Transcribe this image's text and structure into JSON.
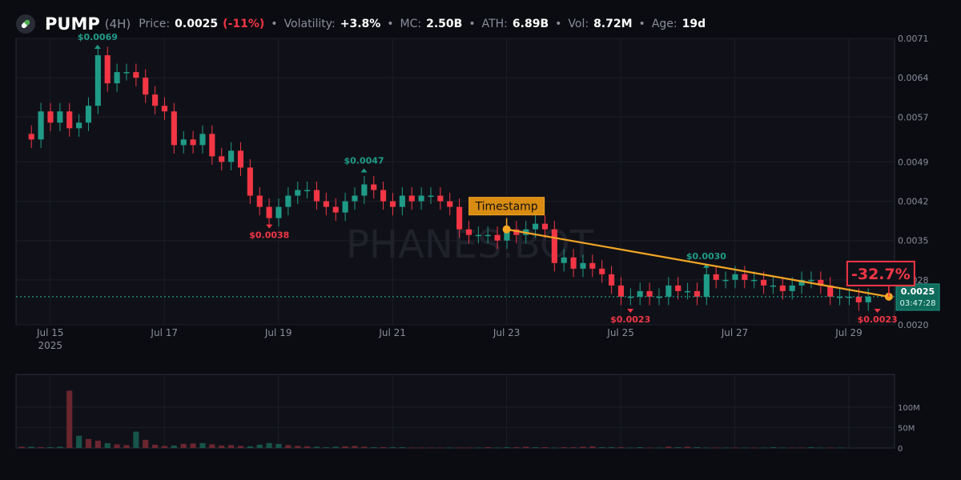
{
  "header": {
    "symbol": "PUMP",
    "timeframe": "(4H)",
    "price_label": "Price:",
    "price": "0.0025",
    "price_change": "(-11%)",
    "volatility_label": "Volatility:",
    "volatility": "+3.8%",
    "mc_label": "MC:",
    "mc": "2.50B",
    "ath_label": "ATH:",
    "ath": "6.89B",
    "vol_label": "Vol:",
    "vol": "8.72M",
    "age_label": "Age:",
    "age": "19d",
    "separator": "•",
    "icon": "pill-icon"
  },
  "colors": {
    "up": "#1f9b87",
    "down": "#f23645",
    "trend": "#f5a623",
    "background": "#0b0c12",
    "panel": "#101118",
    "grid": "#1c1e27"
  },
  "watermark": "PHANES.BOT",
  "chart_data": [
    {
      "type": "candlestick",
      "ylim": [
        0.002,
        0.0071
      ],
      "y_ticks": [
        "0.0071",
        "0.0064",
        "0.0057",
        "0.0049",
        "0.0042",
        "0.0035",
        "0.0028",
        "0.0020"
      ],
      "x_ticks": [
        {
          "label": "Jul 15",
          "day": 15
        },
        {
          "label": "Jul 17",
          "day": 17
        },
        {
          "label": "Jul 19",
          "day": 19
        },
        {
          "label": "Jul 21",
          "day": 21
        },
        {
          "label": "Jul 23",
          "day": 23
        },
        {
          "label": "Jul 25",
          "day": 25
        },
        {
          "label": "Jul 27",
          "day": 27
        },
        {
          "label": "Jul 29",
          "day": 29
        }
      ],
      "x_range_days": [
        14.4,
        29.8
      ],
      "year_label": "2025",
      "grid": true,
      "candles_start_day": 14.67,
      "candle_interval_days": 0.1667,
      "closes": [
        0.0053,
        0.0058,
        0.0056,
        0.0058,
        0.0055,
        0.0056,
        0.0059,
        0.0068,
        0.0063,
        0.0065,
        0.0065,
        0.0064,
        0.0061,
        0.0059,
        0.0058,
        0.0052,
        0.0053,
        0.0052,
        0.0054,
        0.005,
        0.0049,
        0.0051,
        0.0048,
        0.0043,
        0.0041,
        0.0039,
        0.0041,
        0.0043,
        0.0044,
        0.0044,
        0.0042,
        0.0041,
        0.004,
        0.0042,
        0.0043,
        0.0045,
        0.0044,
        0.0042,
        0.0041,
        0.0043,
        0.0042,
        0.0043,
        0.0043,
        0.0042,
        0.0041,
        0.0037,
        0.0036,
        0.0036,
        0.0036,
        0.0035,
        0.0037,
        0.0036,
        0.0037,
        0.0038,
        0.0037,
        0.0031,
        0.0032,
        0.003,
        0.0031,
        0.003,
        0.0029,
        0.0027,
        0.0025,
        0.0025,
        0.0026,
        0.0025,
        0.0025,
        0.0027,
        0.0026,
        0.0026,
        0.0025,
        0.0029,
        0.0028,
        0.0028,
        0.0029,
        0.0028,
        0.0028,
        0.0027,
        0.0027,
        0.0026,
        0.0027,
        0.0028,
        0.0028,
        0.0027,
        0.0025,
        0.0025,
        0.0025,
        0.0024,
        0.0025
      ],
      "price_line": {
        "value": 0.0025,
        "label": "0.0025",
        "countdown": "03:47:28"
      },
      "annotations": [
        {
          "text": "$0.0069",
          "day": 15.83,
          "value": 0.0069,
          "kind": "high"
        },
        {
          "text": "$0.0038",
          "day": 18.84,
          "value": 0.0038,
          "kind": "low"
        },
        {
          "text": "$0.0047",
          "day": 20.5,
          "value": 0.0047,
          "kind": "high"
        },
        {
          "text": "$0.0023",
          "day": 25.17,
          "value": 0.0023,
          "kind": "low"
        },
        {
          "text": "$0.0030",
          "day": 26.5,
          "value": 0.003,
          "kind": "high"
        },
        {
          "text": "$0.0023",
          "day": 29.5,
          "value": 0.0023,
          "kind": "low"
        }
      ],
      "trend_line": {
        "start": {
          "day": 23.0,
          "value": 0.0037
        },
        "end": {
          "day": 29.7,
          "value": 0.0025
        },
        "start_label": "Timestamp",
        "change_label": "-32.7%"
      }
    },
    {
      "type": "bar",
      "title": "",
      "ylim": [
        0,
        180
      ],
      "y_ticks": [
        {
          "label": "100M",
          "value": 100
        },
        {
          "label": "50M",
          "value": 50
        },
        {
          "label": "0",
          "value": 0
        }
      ],
      "unit": "M",
      "values": [
        2,
        4,
        3,
        3,
        2,
        2,
        3,
        140,
        30,
        22,
        18,
        12,
        9,
        7,
        40,
        20,
        8,
        5,
        6,
        10,
        11,
        12,
        9,
        6,
        7,
        5,
        4,
        8,
        12,
        10,
        7,
        5,
        4,
        3,
        2,
        3,
        4,
        5,
        3,
        2,
        2,
        2,
        2,
        1,
        1,
        1,
        1,
        1,
        1,
        1,
        1,
        2,
        1,
        2,
        2,
        3,
        2,
        2,
        1,
        2,
        2,
        3,
        4,
        2,
        2,
        2,
        1,
        2,
        1,
        1,
        3,
        2,
        3,
        2,
        1,
        1,
        1,
        1,
        1,
        1,
        1,
        2,
        1,
        1,
        1,
        2,
        1,
        1,
        1
      ],
      "directions": [
        "up",
        "up",
        "down",
        "up",
        "down",
        "up",
        "up",
        "down",
        "up",
        "down",
        "down",
        "up",
        "down",
        "down",
        "up",
        "down",
        "down",
        "down",
        "up",
        "down",
        "down",
        "up",
        "down",
        "down",
        "down",
        "down",
        "up",
        "up",
        "up",
        "up",
        "down",
        "down",
        "down",
        "up",
        "up",
        "up",
        "down",
        "down",
        "down",
        "up",
        "down",
        "up",
        "up",
        "down",
        "down",
        "down",
        "down",
        "up",
        "down",
        "down",
        "up",
        "down",
        "up",
        "up",
        "down",
        "down",
        "up",
        "down",
        "up",
        "down",
        "down",
        "down",
        "down",
        "up",
        "up",
        "down",
        "up",
        "up",
        "down",
        "up",
        "down",
        "up",
        "down",
        "up",
        "up",
        "down",
        "up",
        "down",
        "up",
        "down",
        "up",
        "up",
        "up",
        "down",
        "down",
        "up",
        "up",
        "down",
        "up"
      ]
    }
  ]
}
